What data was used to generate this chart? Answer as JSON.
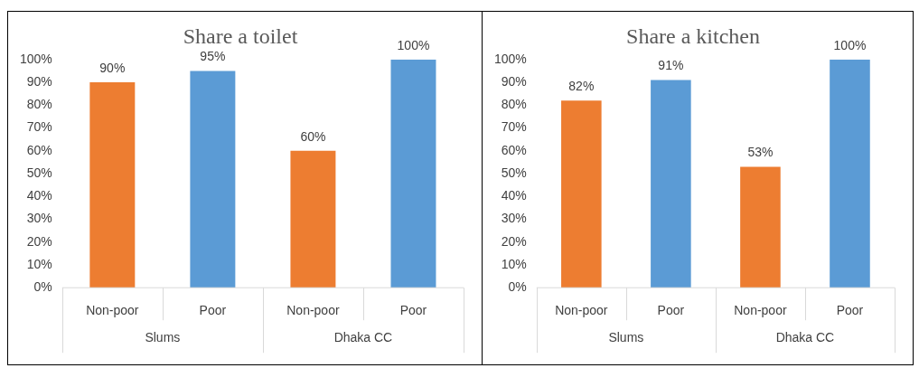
{
  "chart_data": [
    {
      "type": "bar",
      "title": "Share a toilet",
      "categories": [
        "Non-poor",
        "Poor",
        "Non-poor",
        "Poor"
      ],
      "values": [
        90,
        95,
        60,
        100
      ],
      "colors": [
        "#ed7d31",
        "#5b9bd5",
        "#ed7d31",
        "#5b9bd5"
      ],
      "value_labels": [
        "90%",
        "95%",
        "60%",
        "100%"
      ],
      "ylim": [
        0,
        100
      ],
      "yticks": [
        {
          "value": 0,
          "label": "0%"
        },
        {
          "value": 10,
          "label": "10%"
        },
        {
          "value": 20,
          "label": "20%"
        },
        {
          "value": 30,
          "label": "30%"
        },
        {
          "value": 40,
          "label": "40%"
        },
        {
          "value": 50,
          "label": "50%"
        },
        {
          "value": 60,
          "label": "60%"
        },
        {
          "value": 70,
          "label": "70%"
        },
        {
          "value": 80,
          "label": "80%"
        },
        {
          "value": 90,
          "label": "90%"
        },
        {
          "value": 100,
          "label": "100%"
        }
      ],
      "annotations": [
        "Slums",
        "Dhaka CC"
      ]
    },
    {
      "type": "bar",
      "title": "Share a kitchen",
      "categories": [
        "Non-poor",
        "Poor",
        "Non-poor",
        "Poor"
      ],
      "values": [
        82,
        91,
        53,
        100
      ],
      "colors": [
        "#ed7d31",
        "#5b9bd5",
        "#ed7d31",
        "#5b9bd5"
      ],
      "value_labels": [
        "82%",
        "91%",
        "53%",
        "100%"
      ],
      "ylim": [
        0,
        100
      ],
      "yticks": [
        {
          "value": 0,
          "label": "0%"
        },
        {
          "value": 10,
          "label": "10%"
        },
        {
          "value": 20,
          "label": "20%"
        },
        {
          "value": 30,
          "label": "30%"
        },
        {
          "value": 40,
          "label": "40%"
        },
        {
          "value": 50,
          "label": "50%"
        },
        {
          "value": 60,
          "label": "60%"
        },
        {
          "value": 70,
          "label": "70%"
        },
        {
          "value": 80,
          "label": "80%"
        },
        {
          "value": 90,
          "label": "90%"
        },
        {
          "value": 100,
          "label": "100%"
        }
      ],
      "annotations": [
        "Slums",
        "Dhaka CC"
      ]
    }
  ]
}
